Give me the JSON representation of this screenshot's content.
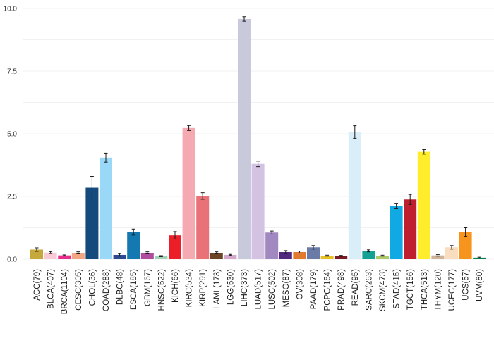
{
  "chart_data": {
    "type": "bar",
    "title": "",
    "xlabel": "",
    "ylabel": "",
    "ylim": [
      0,
      10.4
    ],
    "yticks": [
      0,
      2.5,
      5,
      7.5,
      10
    ],
    "ytick_labels": [
      "0.0",
      "2.5",
      "5.0",
      "7.5",
      "10.0"
    ],
    "grid": "horizontal",
    "error_bars": true,
    "categories": [
      "ACC(79)",
      "BLCA(407)",
      "BRCA(1104)",
      "CESC(305)",
      "CHOL(36)",
      "COAD(288)",
      "DLBC(48)",
      "ESCA(185)",
      "GBM(167)",
      "HNSC(522)",
      "KICH(66)",
      "KIRC(534)",
      "KIRP(291)",
      "LAML(173)",
      "LGG(530)",
      "LIHC(373)",
      "LUAD(517)",
      "LUSC(502)",
      "MESO(87)",
      "OV(308)",
      "PAAD(179)",
      "PCPG(184)",
      "PRAD(498)",
      "READ(95)",
      "SARC(263)",
      "SKCM(473)",
      "STAD(415)",
      "TGCT(156)",
      "THCA(513)",
      "THYM(120)",
      "UCEC(177)",
      "UCS(57)",
      "UVM(80)"
    ],
    "values": [
      0.38,
      0.26,
      0.15,
      0.25,
      2.85,
      4.05,
      0.17,
      1.08,
      0.25,
      0.12,
      0.95,
      5.23,
      2.52,
      0.25,
      0.17,
      9.58,
      3.8,
      1.06,
      0.28,
      0.28,
      0.47,
      0.14,
      0.13,
      5.07,
      0.33,
      0.14,
      2.12,
      2.38,
      4.28,
      0.15,
      0.47,
      1.08,
      0.06
    ],
    "errors": [
      0.07,
      0.04,
      0.02,
      0.04,
      0.45,
      0.18,
      0.05,
      0.12,
      0.04,
      0.02,
      0.15,
      0.1,
      0.13,
      0.04,
      0.02,
      0.09,
      0.11,
      0.06,
      0.06,
      0.04,
      0.07,
      0.02,
      0.02,
      0.25,
      0.04,
      0.02,
      0.11,
      0.2,
      0.09,
      0.03,
      0.07,
      0.17,
      0.02
    ],
    "colors": [
      "#C5A93A",
      "#F9C9D6",
      "#E62F8B",
      "#F4A582",
      "#154A7D",
      "#9AD8F7",
      "#2C4A8F",
      "#1479B0",
      "#B04C9E",
      "#9FD4B8",
      "#EC1E28",
      "#F4AAB0",
      "#E87277",
      "#6B4426",
      "#D4A8CC",
      "#C8C9DB",
      "#D4C2E2",
      "#A188C0",
      "#51267E",
      "#E07A2F",
      "#6B7BA8",
      "#E6C024",
      "#7A1A26",
      "#DAEEFA",
      "#12A295",
      "#AEC96A",
      "#10A9E3",
      "#BE1E2D",
      "#FFEC2B",
      "#CDB49A",
      "#F9DDBE",
      "#F7941D",
      "#03824E"
    ]
  }
}
